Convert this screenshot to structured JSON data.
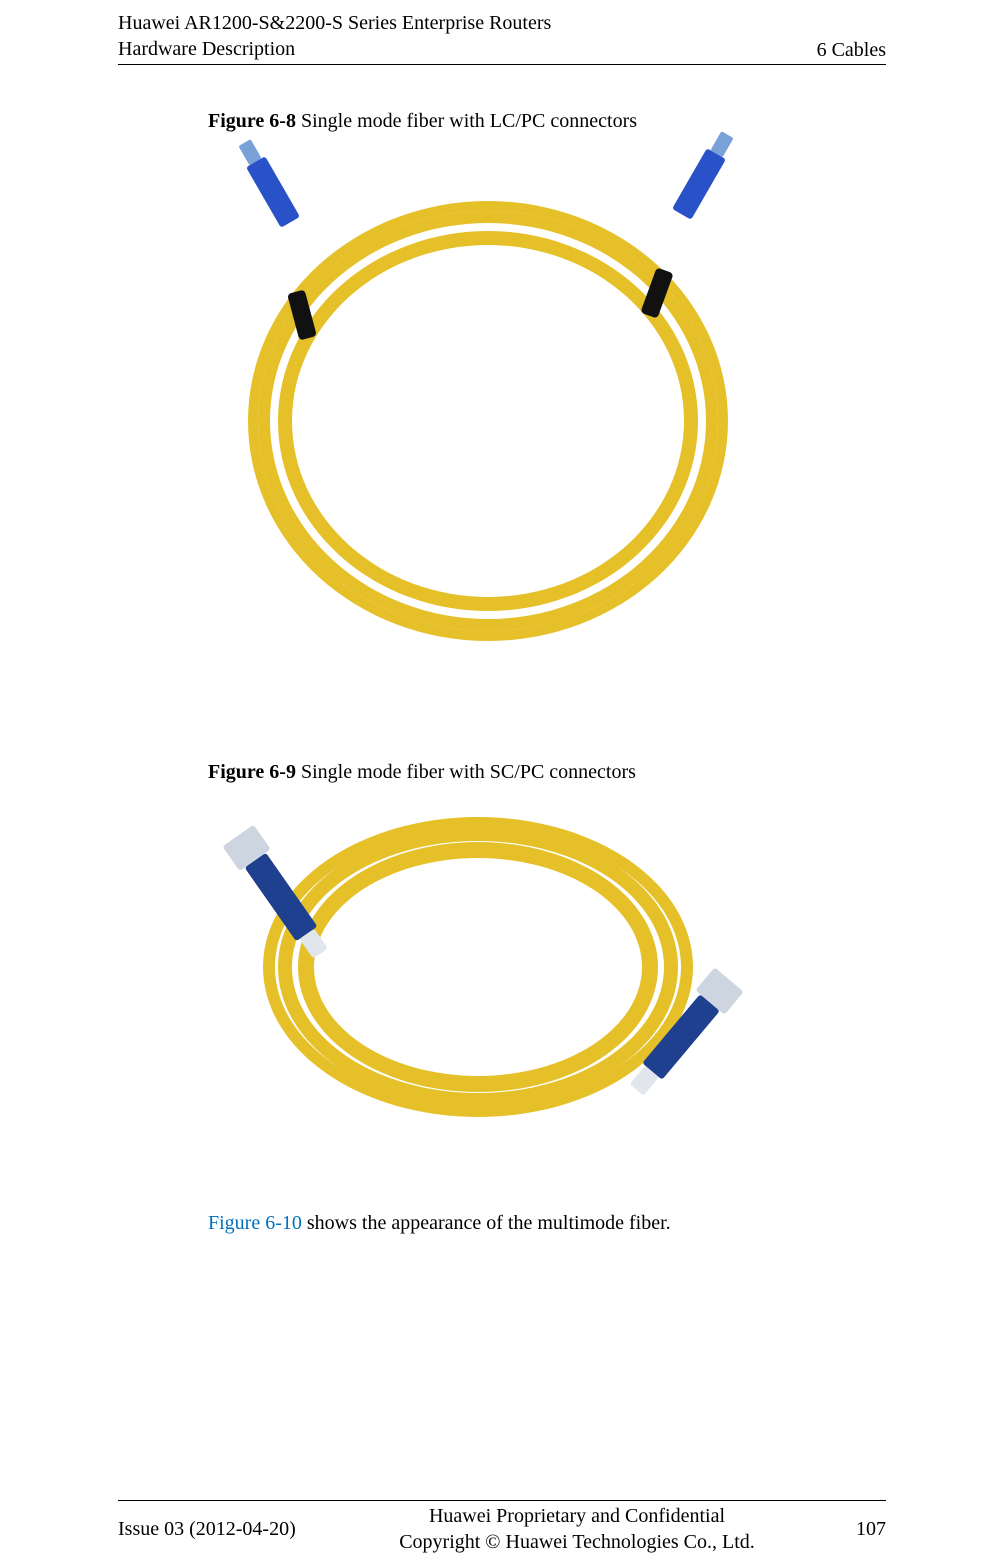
{
  "header": {
    "title_line1": "Huawei AR1200-S&2200-S Series Enterprise Routers",
    "title_line2": "Hardware Description",
    "section": "6 Cables"
  },
  "figure1": {
    "label": "Figure 6-8",
    "caption": " Single mode fiber with LC/PC connectors",
    "cable_color": "#e6c028",
    "connector_color": "#2a52c8",
    "tie_color": "#111111"
  },
  "figure2": {
    "label": "Figure 6-9",
    "caption": " Single mode fiber with SC/PC connectors",
    "cable_color": "#e6c028",
    "connector_color": "#1f3f8f"
  },
  "crossref": {
    "link_text": "Figure 6-10",
    "rest": " shows the appearance of the multimode fiber."
  },
  "footer": {
    "issue": "Issue 03 (2012-04-20)",
    "proprietary": "Huawei Proprietary and Confidential",
    "copyright": "Copyright © Huawei Technologies Co., Ltd.",
    "page": "107"
  }
}
